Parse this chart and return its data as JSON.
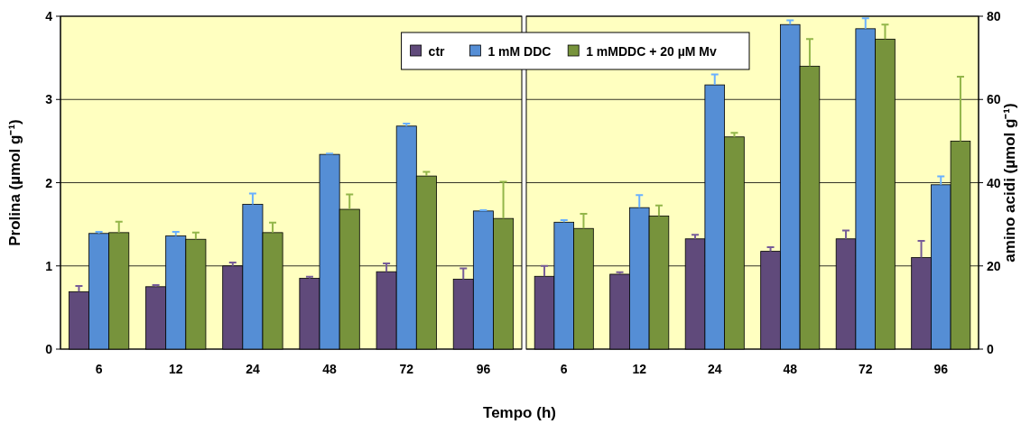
{
  "chart_data": [
    {
      "type": "bar",
      "xlabel": "Tempo (h)",
      "ylabel": "Prolina (µmol g⁻¹)",
      "categories": [
        "6",
        "12",
        "24",
        "48",
        "72",
        "96"
      ],
      "ylim": [
        0,
        4
      ],
      "yticks": [
        0,
        1,
        2,
        3,
        4
      ],
      "legend": "top right",
      "grid": "y",
      "series": [
        {
          "name": "ctr",
          "color": "#604a7b",
          "values": [
            0.69,
            0.75,
            1.0,
            0.85,
            0.93,
            0.84
          ],
          "errors": [
            [
              0.69,
              0.76
            ],
            [
              0.75,
              0.77
            ],
            [
              1.0,
              1.04
            ],
            [
              0.85,
              0.87
            ],
            [
              0.93,
              1.03
            ],
            [
              0.84,
              0.97
            ]
          ]
        },
        {
          "name": "1 mM DDC",
          "color": "#558ed5",
          "values": [
            1.39,
            1.36,
            1.74,
            2.34,
            2.68,
            1.66
          ],
          "errors": [
            [
              1.39,
              1.41
            ],
            [
              1.36,
              1.41
            ],
            [
              1.74,
              1.87
            ],
            [
              2.34,
              2.35
            ],
            [
              2.68,
              2.71
            ],
            [
              1.66,
              1.67
            ]
          ]
        },
        {
          "name": "1 mMDDC + 20 µM Mv",
          "color": "#77933c",
          "values": [
            1.4,
            1.32,
            1.4,
            1.68,
            2.08,
            1.57
          ],
          "errors": [
            [
              1.4,
              1.53
            ],
            [
              1.32,
              1.4
            ],
            [
              1.4,
              1.52
            ],
            [
              1.68,
              1.86
            ],
            [
              2.08,
              2.13
            ],
            [
              1.57,
              2.01
            ]
          ]
        }
      ]
    },
    {
      "type": "bar",
      "y2label": "amino acidi (µmol g⁻¹)",
      "categories": [
        "6",
        "12",
        "24",
        "48",
        "72",
        "96"
      ],
      "y2lim": [
        0,
        80
      ],
      "y2ticks": [
        0,
        20,
        40,
        60,
        80
      ],
      "grid": "y",
      "series": [
        {
          "color": "#604a7b",
          "axis": "y2",
          "values": [
            17.5,
            18,
            26.5,
            23.5,
            26.5,
            22
          ],
          "errors": [
            [
              17.5,
              20
            ],
            [
              18,
              18.5
            ],
            [
              26.5,
              27.5
            ],
            [
              23.5,
              24.5
            ],
            [
              26.5,
              28.5
            ],
            [
              22,
              26
            ]
          ]
        },
        {
          "color": "#558ed5",
          "axis": "y2",
          "values": [
            30.5,
            34,
            63.5,
            78,
            77,
            39.5
          ],
          "errors": [
            [
              30.5,
              31
            ],
            [
              34,
              37
            ],
            [
              63.5,
              66
            ],
            [
              78,
              79
            ],
            [
              77,
              79.5
            ],
            [
              39.5,
              41.5
            ]
          ]
        },
        {
          "color": "#77933c",
          "axis": "y2",
          "values": [
            29,
            32,
            51,
            68,
            74.5,
            50
          ],
          "errors": [
            [
              29,
              32.5
            ],
            [
              32,
              34.5
            ],
            [
              51,
              52
            ],
            [
              68,
              74.5
            ],
            [
              74.5,
              78
            ],
            [
              50,
              65.5
            ]
          ]
        }
      ]
    }
  ]
}
